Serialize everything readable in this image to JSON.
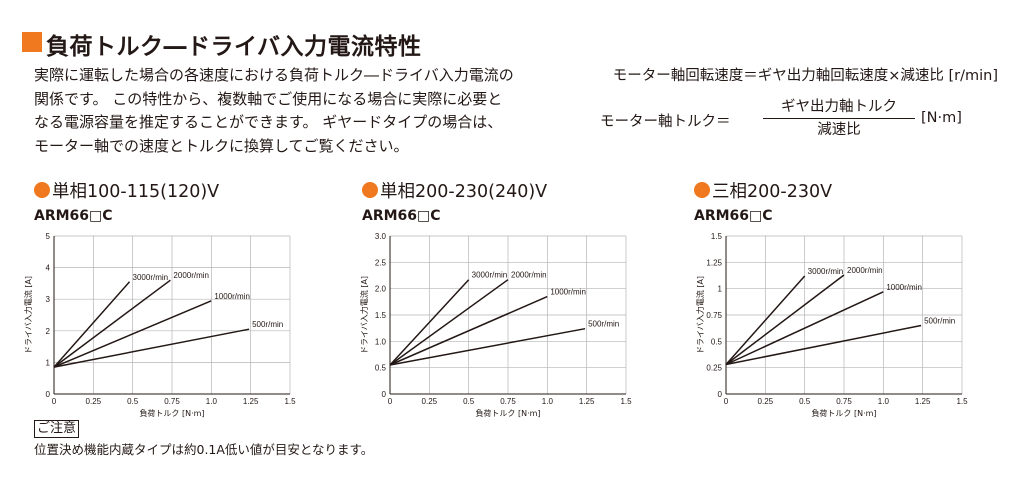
{
  "header": {
    "title": "負荷トルク―ドライバ入力電流特性",
    "accent_color": "#f0781e",
    "intro": "実際に運転した場合の各速度における負荷トルク―ドライバ入力電流の関係です。 この特性から、複数軸でご使用になる場合に実際に必要となる電源容量を推定することができます。 ギヤードタイプの場合は、モーター軸での速度とトルクに換算してご覧ください。"
  },
  "formulas": {
    "speed": "モーター軸回転速度＝ギヤ出力軸回転速度×減速比 [r/min]",
    "torque_lhs": "モーター軸トルク＝",
    "torque_numerator": "ギヤ出力軸トルク",
    "torque_denominator": "減速比",
    "torque_unit": "[N·m]"
  },
  "sections": [
    {
      "title": "単相100-115(120)V",
      "model": "ARM66□C"
    },
    {
      "title": "単相200-230(240)V",
      "model": "ARM66□C"
    },
    {
      "title": "三相200-230V",
      "model": "ARM66□C"
    }
  ],
  "chart_data": [
    {
      "type": "line",
      "xlabel": "負荷トルク [N·m]",
      "ylabel": "ドライバ入力電流 [A]",
      "xlim": [
        0,
        1.5
      ],
      "ylim": [
        0,
        5
      ],
      "xticks": [
        "0",
        "0.25",
        "0.5",
        "0.75",
        "1.0",
        "1.25",
        "1.5"
      ],
      "yticks": [
        "0",
        "1",
        "2",
        "3",
        "4",
        "5"
      ],
      "grid": true,
      "series": [
        {
          "name": "3000r/min",
          "points": [
            [
              0,
              0.85
            ],
            [
              0.48,
              3.55
            ]
          ]
        },
        {
          "name": "2000r/min",
          "points": [
            [
              0,
              0.85
            ],
            [
              0.74,
              3.6
            ]
          ]
        },
        {
          "name": "1000r/min",
          "points": [
            [
              0,
              0.85
            ],
            [
              1.0,
              2.95
            ]
          ]
        },
        {
          "name": "500r/min",
          "points": [
            [
              0,
              0.85
            ],
            [
              1.24,
              2.05
            ]
          ]
        }
      ]
    },
    {
      "type": "line",
      "xlabel": "負荷トルク [N·m]",
      "ylabel": "ドライバ入力電流 [A]",
      "xlim": [
        0,
        1.5
      ],
      "ylim": [
        0,
        3.0
      ],
      "xticks": [
        "0",
        "0.25",
        "0.5",
        "0.75",
        "1.0",
        "1.25",
        "1.5"
      ],
      "yticks": [
        "0",
        "0.5",
        "1.0",
        "1.5",
        "2.0",
        "2.5",
        "3.0"
      ],
      "grid": true,
      "series": [
        {
          "name": "3000r/min",
          "points": [
            [
              0,
              0.55
            ],
            [
              0.5,
              2.17
            ]
          ]
        },
        {
          "name": "2000r/min",
          "points": [
            [
              0,
              0.55
            ],
            [
              0.75,
              2.17
            ]
          ]
        },
        {
          "name": "1000r/min",
          "points": [
            [
              0,
              0.55
            ],
            [
              1.0,
              1.85
            ]
          ]
        },
        {
          "name": "500r/min",
          "points": [
            [
              0,
              0.55
            ],
            [
              1.24,
              1.24
            ]
          ]
        }
      ]
    },
    {
      "type": "line",
      "xlabel": "負荷トルク [N·m]",
      "ylabel": "ドライバ入力電流 [A]",
      "xlim": [
        0,
        1.5
      ],
      "ylim": [
        0,
        1.5
      ],
      "xticks": [
        "0",
        "0.25",
        "0.5",
        "0.75",
        "1.0",
        "1.25",
        "1.5"
      ],
      "yticks": [
        "0",
        "0.25",
        "0.5",
        "0.75",
        "1",
        "1.25",
        "1.5"
      ],
      "grid": true,
      "series": [
        {
          "name": "3000r/min",
          "points": [
            [
              0,
              0.28
            ],
            [
              0.5,
              1.12
            ]
          ]
        },
        {
          "name": "2000r/min",
          "points": [
            [
              0,
              0.28
            ],
            [
              0.75,
              1.13
            ]
          ]
        },
        {
          "name": "1000r/min",
          "points": [
            [
              0,
              0.28
            ],
            [
              1.0,
              0.97
            ]
          ]
        },
        {
          "name": "500r/min",
          "points": [
            [
              0,
              0.28
            ],
            [
              1.24,
              0.65
            ]
          ]
        }
      ]
    }
  ],
  "note": {
    "label": "ご注意",
    "text": "位置決め機能内蔵タイプは約0.1A低い値が目安となります。"
  }
}
